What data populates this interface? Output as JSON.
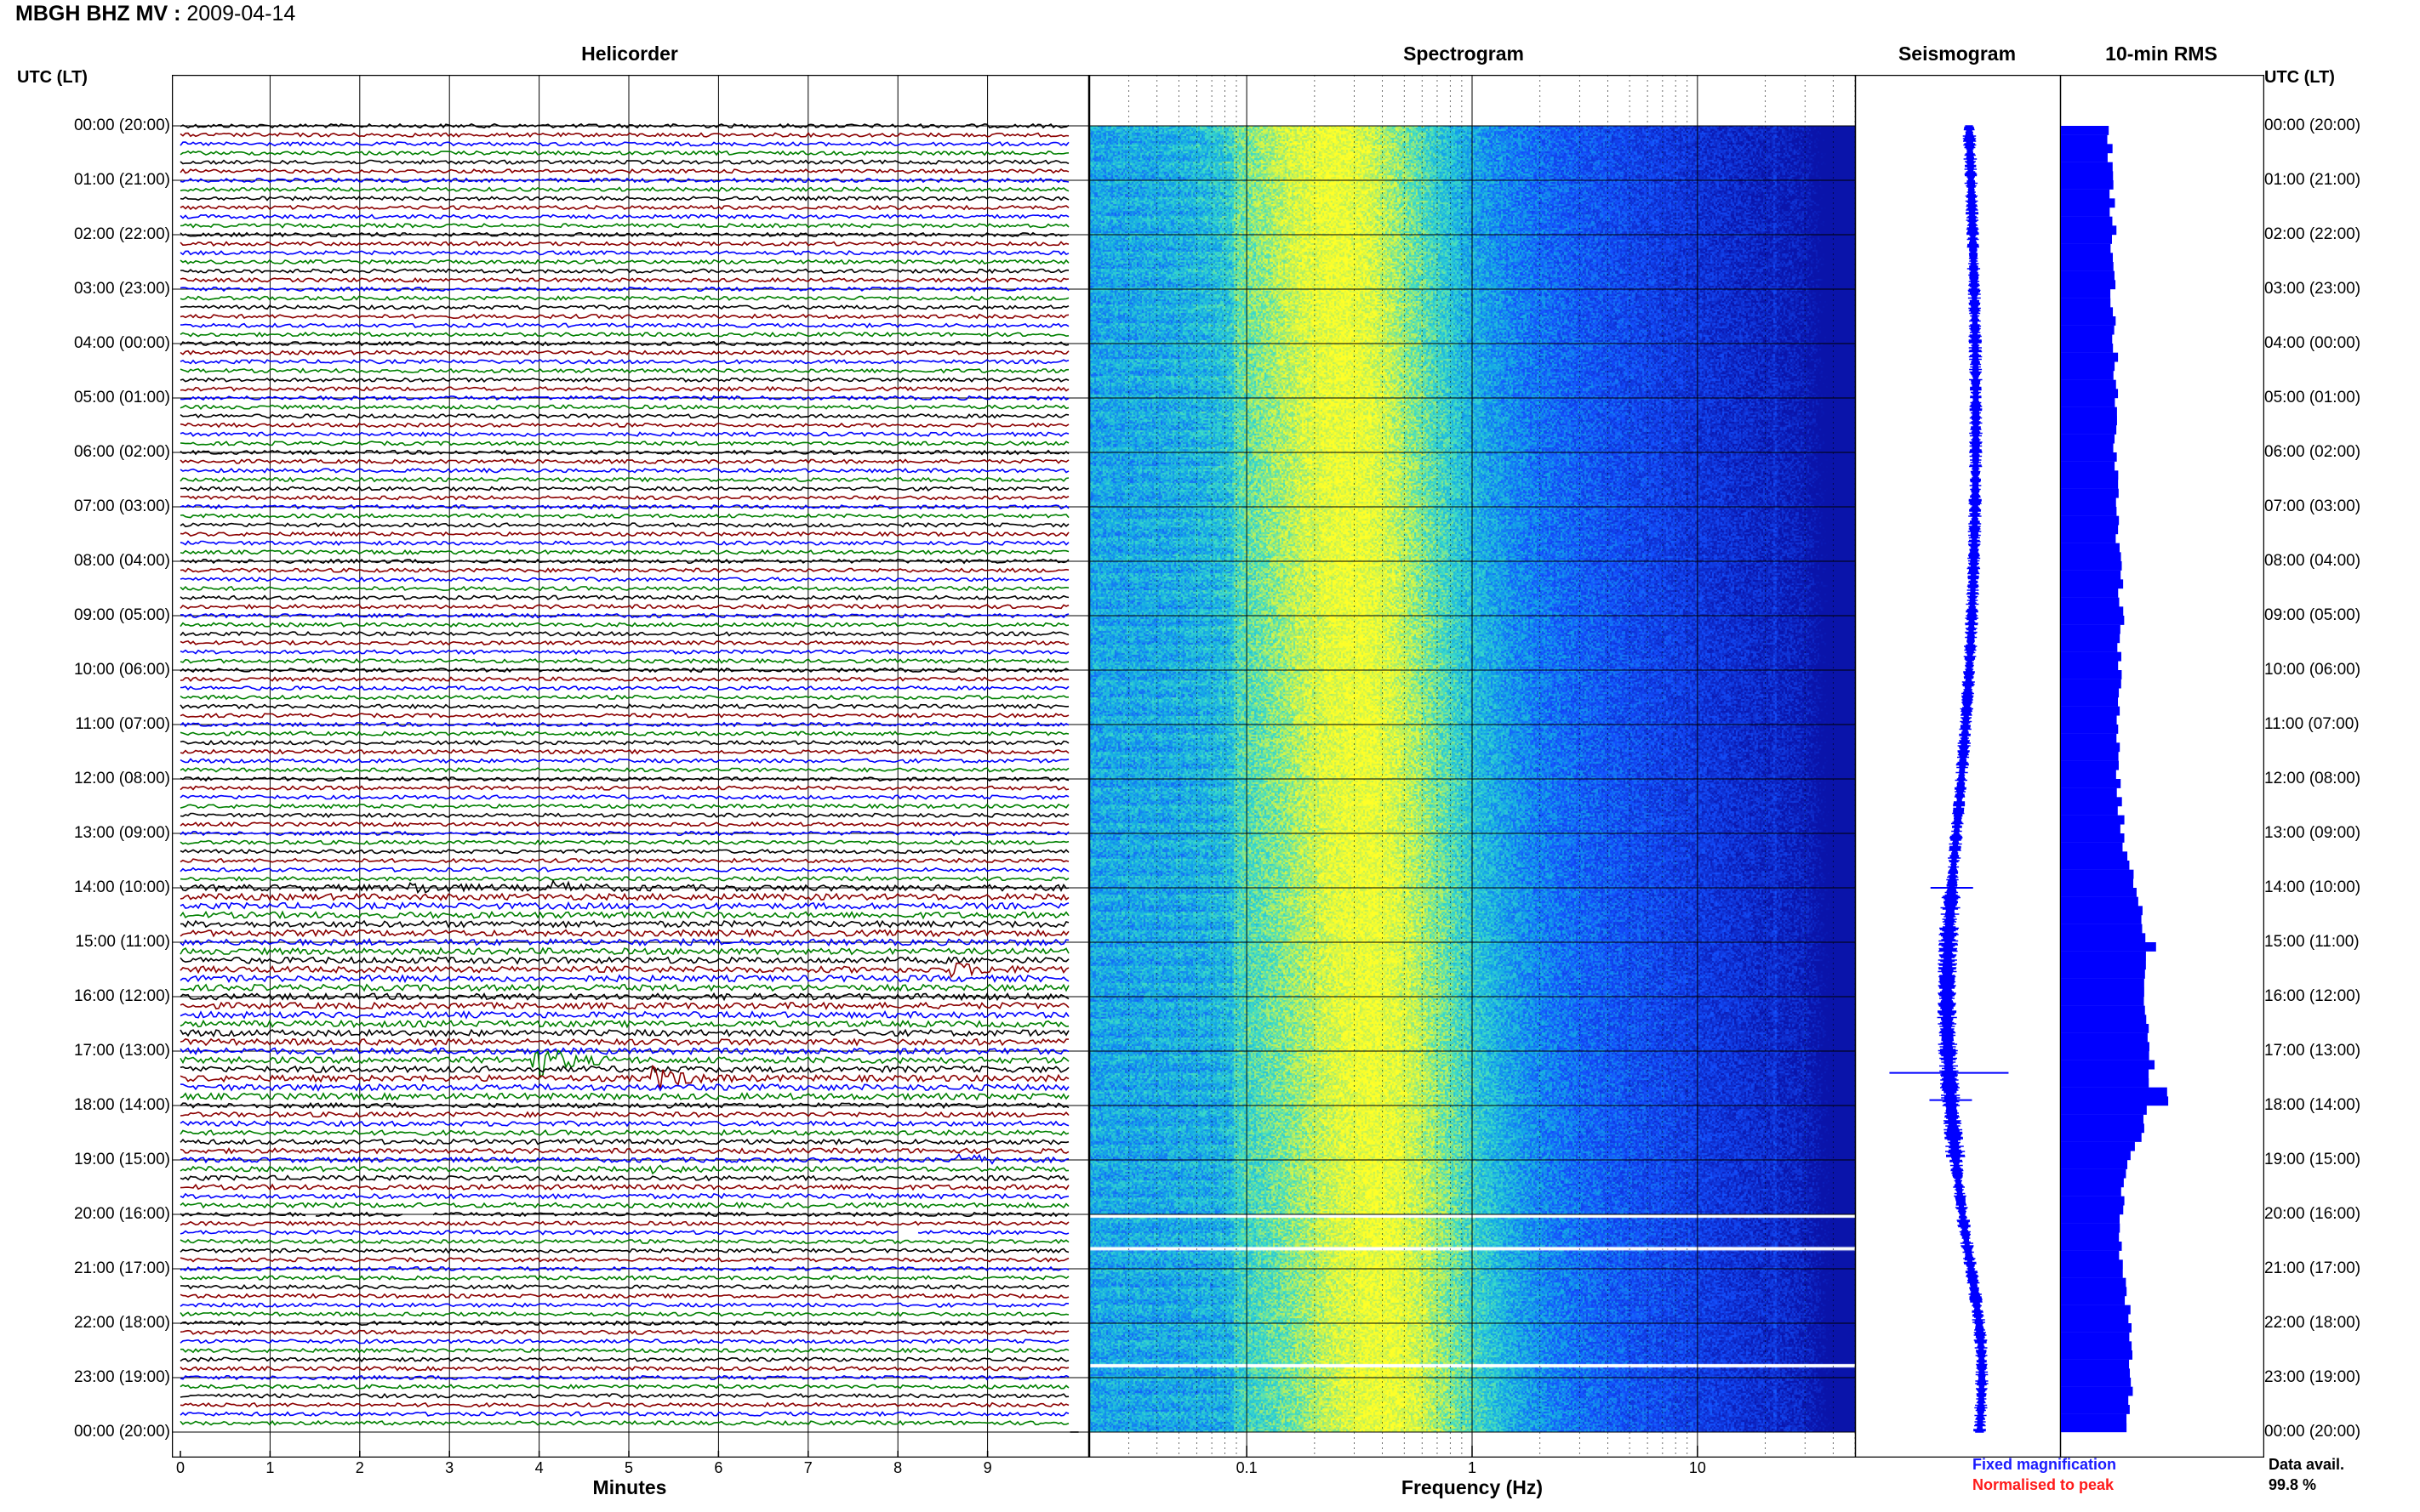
{
  "header": {
    "station": "MBGH BHZ MV",
    "separator": " : ",
    "date": "2009-04-14"
  },
  "panels": {
    "helicorder": "Helicorder",
    "spectrogram": "Spectrogram",
    "seismogram": "Seismogram",
    "rms": "10-min RMS"
  },
  "axis_labels": {
    "utc_left": "UTC (LT)",
    "utc_right": "UTC (LT)",
    "minutes": "Minutes",
    "frequency": "Frequency (Hz)"
  },
  "legend": {
    "fixed": "Fixed magnification",
    "normalised": "Normalised to peak",
    "fixed_color": "#1a1aff",
    "normalised_color": "#ff1a1a",
    "data_avail_label": "Data avail.",
    "data_avail_value": "99.8 %"
  },
  "colors": {
    "trace_cycle": [
      "#000000",
      "#8b0000",
      "#0000ff",
      "#008000"
    ],
    "spectrum_low": "#1a3cff",
    "spectrum_high": "#ffff33",
    "rms_fill": "#0000ff"
  },
  "chart_data": [
    {
      "type": "line",
      "panel": "helicorder",
      "title": "Helicorder",
      "xlabel": "Minutes",
      "xlim": [
        0,
        10
      ],
      "xticks": [
        "0",
        "1",
        "2",
        "3",
        "4",
        "5",
        "6",
        "7",
        "8",
        "9"
      ],
      "time_ticks": [
        "00:00 (20:00)",
        "01:00 (21:00)",
        "02:00 (22:00)",
        "03:00 (23:00)",
        "04:00 (00:00)",
        "05:00 (01:00)",
        "06:00 (02:00)",
        "07:00 (03:00)",
        "08:00 (04:00)",
        "09:00 (05:00)",
        "10:00 (06:00)",
        "11:00 (07:00)",
        "12:00 (08:00)",
        "13:00 (09:00)",
        "14:00 (10:00)",
        "15:00 (11:00)",
        "16:00 (12:00)",
        "17:00 (13:00)",
        "18:00 (14:00)",
        "19:00 (15:00)",
        "20:00 (16:00)",
        "21:00 (17:00)",
        "22:00 (18:00)",
        "23:00 (19:00)",
        "00:00 (20:00)"
      ],
      "lines_per_hour": 6,
      "hours": 24,
      "events": [
        {
          "hour": 14,
          "line": 0,
          "minute": 2.6,
          "strength": 1.5
        },
        {
          "hour": 14,
          "line": 0,
          "minute": 4.2,
          "strength": 1.3
        },
        {
          "hour": 15,
          "line": 3,
          "minute": 8.6,
          "strength": 2.0
        },
        {
          "hour": 17,
          "line": 1,
          "minute": 3.95,
          "strength": 6.0
        },
        {
          "hour": 17,
          "line": 3,
          "minute": 5.3,
          "strength": 3.5
        },
        {
          "hour": 19,
          "line": 0,
          "minute": 8.7,
          "strength": 2.2
        },
        {
          "hour": 19,
          "line": 1,
          "minute": 5.3,
          "strength": 1.5
        }
      ],
      "gaps": [
        {
          "hour": 20,
          "line": 0,
          "from": 1.4,
          "to": 1.5
        },
        {
          "hour": 20,
          "line": 0,
          "from": 2.5,
          "to": 2.8
        },
        {
          "hour": 20,
          "line": 2,
          "from": 8.0,
          "to": 8.2
        }
      ]
    },
    {
      "type": "heatmap",
      "panel": "spectrogram",
      "title": "Spectrogram",
      "xlabel": "Frequency (Hz)",
      "xscale": "log",
      "xlim": [
        0.02,
        50
      ],
      "xticks": [
        {
          "value": 0.1,
          "label": "0.1"
        },
        {
          "value": 1,
          "label": "1"
        },
        {
          "value": 10,
          "label": "10"
        }
      ],
      "peak_frequency_start": 0.25,
      "peak_frequency_end": 0.42,
      "gaps_hours": [
        20.0,
        20.6,
        22.75
      ]
    },
    {
      "type": "line",
      "panel": "seismogram",
      "title": "Seismogram",
      "spikes_hours": [
        14.0,
        17.4,
        17.9
      ]
    },
    {
      "type": "bar",
      "panel": "rms",
      "title": "10-min RMS",
      "hours": 24,
      "bins_per_hour": 6,
      "hourly_level": [
        0.44,
        0.46,
        0.48,
        0.47,
        0.49,
        0.49,
        0.5,
        0.5,
        0.53,
        0.55,
        0.53,
        0.52,
        0.52,
        0.56,
        0.68,
        0.78,
        0.73,
        0.82,
        0.8,
        0.62,
        0.52,
        0.56,
        0.62,
        0.62
      ],
      "spikes": [
        {
          "hour": 17.6,
          "value": 0.96
        },
        {
          "hour": 17.9,
          "value": 0.97
        },
        {
          "hour": 15.0,
          "value": 0.86
        }
      ]
    }
  ]
}
